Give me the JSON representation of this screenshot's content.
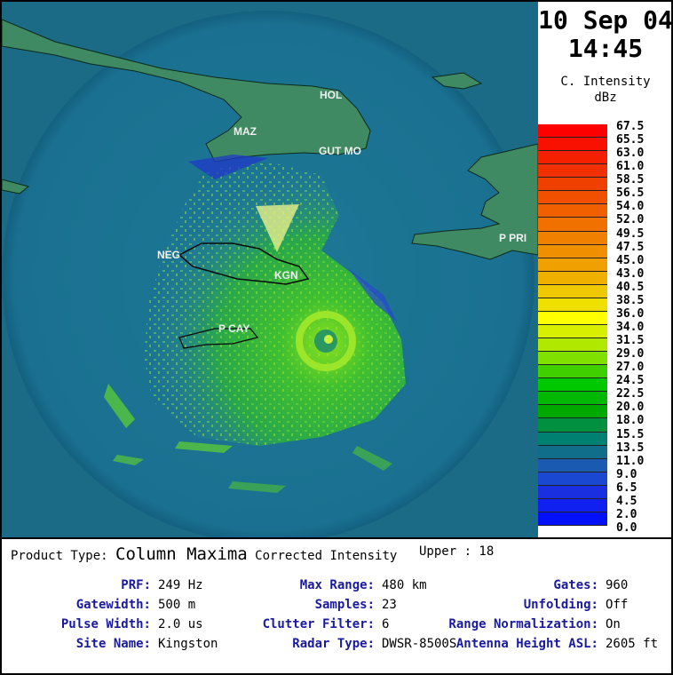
{
  "map": {
    "cities": [
      {
        "label": "HOL"
      },
      {
        "label": "MAZ"
      },
      {
        "label": "GUT MO"
      },
      {
        "label": "NEG"
      },
      {
        "label": "KGN"
      },
      {
        "label": "P CAY"
      },
      {
        "label": "P PRI"
      }
    ]
  },
  "header": {
    "date": "10 Sep 04",
    "time": "14:45",
    "legend_title": "C. Intensity",
    "legend_unit": "dBz"
  },
  "legend": {
    "ticks": [
      "67.5",
      "65.5",
      "63.0",
      "61.0",
      "58.5",
      "56.5",
      "54.0",
      "52.0",
      "49.5",
      "47.5",
      "45.0",
      "43.0",
      "40.5",
      "38.5",
      "36.0",
      "34.0",
      "31.5",
      "29.0",
      "27.0",
      "24.5",
      "22.5",
      "20.0",
      "18.0",
      "15.5",
      "13.5",
      "11.0",
      "9.0",
      "6.5",
      "4.5",
      "2.0",
      "0.0"
    ],
    "colors": [
      "#ff0000",
      "#f81000",
      "#f42000",
      "#f03000",
      "#f04000",
      "#f05000",
      "#f06000",
      "#f07000",
      "#f08000",
      "#f09000",
      "#f0a000",
      "#f0b000",
      "#f0c800",
      "#f0e000",
      "#ffff00",
      "#d8f000",
      "#b0e800",
      "#80e000",
      "#40d000",
      "#00c800",
      "#00b800",
      "#00a800",
      "#009040",
      "#008070",
      "#106e8a",
      "#1a5ab0",
      "#1a48d0",
      "#1a30e0",
      "#1020f0",
      "#0010f8"
    ]
  },
  "info": {
    "product_type_label": "Product Type:",
    "product_type_value": "Column Maxima",
    "corrected": "Corrected Intensity",
    "upper": "Upper : 18",
    "rows": [
      {
        "l1": "PRF:",
        "v1": "249 Hz",
        "l2": "Max Range:",
        "v2": "480 km",
        "l3": "Gates:",
        "v3": "960"
      },
      {
        "l1": "Gatewidth:",
        "v1": "500 m",
        "l2": "Samples:",
        "v2": "23",
        "l3": "Unfolding:",
        "v3": "Off"
      },
      {
        "l1": "Pulse Width:",
        "v1": "2.0 us",
        "l2": "Clutter Filter:",
        "v2": "6",
        "l3": "Range Normalization:",
        "v3": "On"
      },
      {
        "l1": "Site Name:",
        "v1": "Kingston",
        "l2": "Radar Type:",
        "v2": "DWSR-8500S",
        "l3": "Antenna Height ASL:",
        "v3": "2605 ft"
      }
    ]
  }
}
